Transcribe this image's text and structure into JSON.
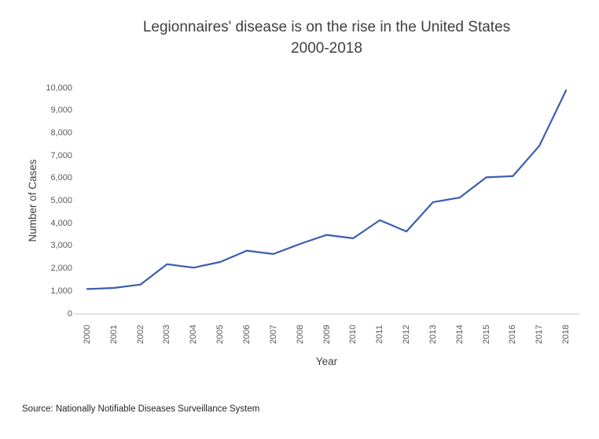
{
  "title": {
    "line1": "Legionnaires' disease is on the rise in the United States",
    "line2": "2000-2018"
  },
  "y_axis": {
    "label": "Number of Cases",
    "ticks": [
      "0",
      "1,000",
      "2,000",
      "3,000",
      "4,000",
      "5,000",
      "6,000",
      "7,000",
      "8,000",
      "9,000",
      "10,000"
    ]
  },
  "x_axis": {
    "label": "Year",
    "categories": [
      "2000",
      "2001",
      "2002",
      "2003",
      "2004",
      "2005",
      "2006",
      "2007",
      "2008",
      "2009",
      "2010",
      "2011",
      "2012",
      "2013",
      "2014",
      "2015",
      "2016",
      "2017",
      "2018"
    ]
  },
  "source": "Source: Nationally Notifiable Diseases Surveillance System",
  "colors": {
    "line": "#3a5eae",
    "axis_line": "#e2e2e2",
    "title_text": "#3f3f3f",
    "tick_text": "#595959"
  },
  "chart_data": {
    "type": "line",
    "title": "Legionnaires' disease is on the rise in the United States 2000-2018",
    "xlabel": "Year",
    "ylabel": "Number of Cases",
    "x": [
      2000,
      2001,
      2002,
      2003,
      2004,
      2005,
      2006,
      2007,
      2008,
      2009,
      2010,
      2011,
      2012,
      2013,
      2014,
      2015,
      2016,
      2017,
      2018
    ],
    "values": [
      1100,
      1150,
      1300,
      2200,
      2050,
      2300,
      2800,
      2650,
      3100,
      3500,
      3350,
      4150,
      3650,
      4950,
      5150,
      6050,
      6100,
      7450,
      9900
    ],
    "ylim": [
      0,
      10000
    ],
    "ytick_interval": 1000,
    "grid": false,
    "legend": false,
    "marker": false
  }
}
